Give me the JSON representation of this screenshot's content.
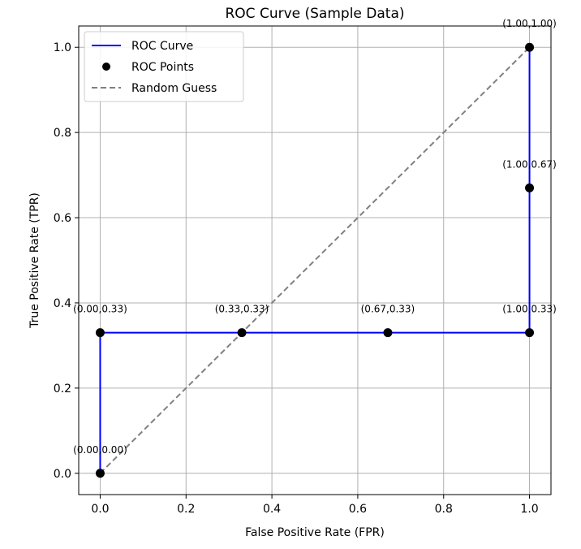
{
  "chart_data": {
    "type": "line",
    "title": "ROC Curve (Sample Data)",
    "xlabel": "False Positive Rate (FPR)",
    "ylabel": "True Positive Rate (TPR)",
    "xlim": [
      -0.05,
      1.05
    ],
    "ylim": [
      -0.05,
      1.05
    ],
    "xticks": [
      0.0,
      0.2,
      0.4,
      0.6,
      0.8,
      1.0
    ],
    "xtick_labels": [
      "0.0",
      "0.2",
      "0.4",
      "0.6",
      "0.8",
      "1.0"
    ],
    "yticks": [
      0.0,
      0.2,
      0.4,
      0.6,
      0.8,
      1.0
    ],
    "ytick_labels": [
      "0.0",
      "0.2",
      "0.4",
      "0.6",
      "0.8",
      "1.0"
    ],
    "grid": true,
    "legend_position": "upper-left",
    "series": [
      {
        "name": "ROC Curve",
        "kind": "line",
        "color": "#0000ff",
        "x": [
          0.0,
          0.0,
          0.33,
          0.67,
          1.0,
          1.0,
          1.0
        ],
        "y": [
          0.0,
          0.33,
          0.33,
          0.33,
          0.33,
          0.67,
          1.0
        ]
      },
      {
        "name": "ROC Points",
        "kind": "scatter",
        "color": "#000000",
        "x": [
          0.0,
          0.0,
          0.33,
          0.67,
          1.0,
          1.0,
          1.0
        ],
        "y": [
          0.0,
          0.33,
          0.33,
          0.33,
          0.33,
          0.67,
          1.0
        ]
      },
      {
        "name": "Random Guess",
        "kind": "dashed-line",
        "color": "#808080",
        "x": [
          0.0,
          1.0
        ],
        "y": [
          0.0,
          1.0
        ]
      }
    ],
    "annotations": [
      {
        "text": "(0.00,0.00)",
        "x": 0.0,
        "y": 0.0
      },
      {
        "text": "(0.00,0.33)",
        "x": 0.0,
        "y": 0.33
      },
      {
        "text": "(0.33,0.33)",
        "x": 0.33,
        "y": 0.33
      },
      {
        "text": "(0.67,0.33)",
        "x": 0.67,
        "y": 0.33
      },
      {
        "text": "(1.00,0.33)",
        "x": 1.0,
        "y": 0.33
      },
      {
        "text": "(1.00,0.67)",
        "x": 1.0,
        "y": 0.67
      },
      {
        "text": "(1.00,1.00)",
        "x": 1.0,
        "y": 1.0
      }
    ]
  }
}
